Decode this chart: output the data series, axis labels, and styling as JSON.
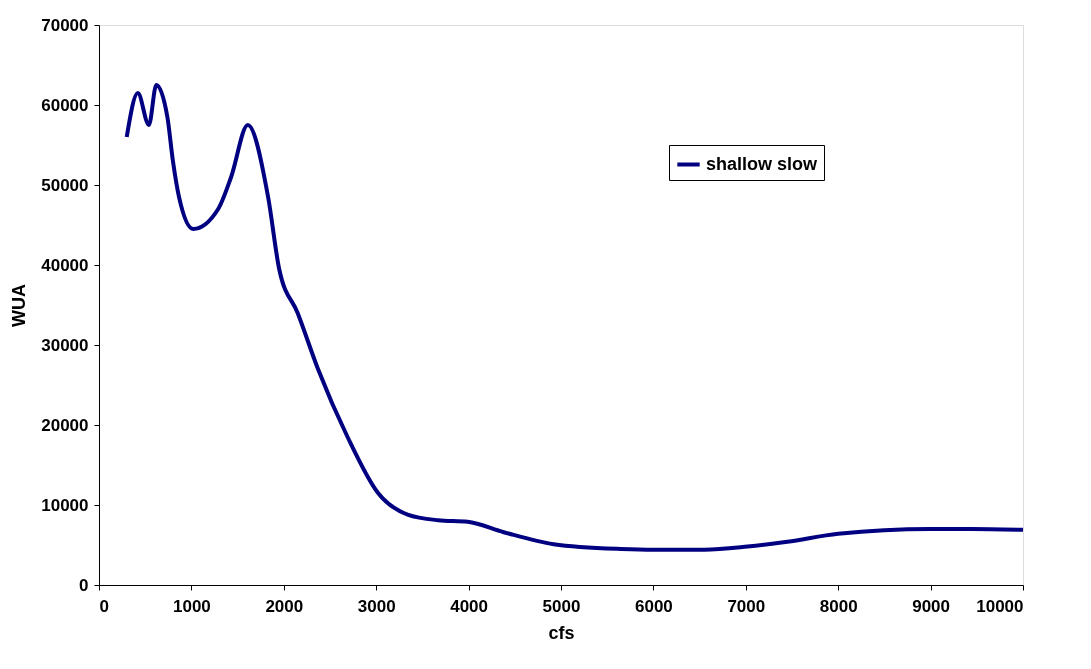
{
  "chart_data": {
    "type": "line",
    "xlabel": "cfs",
    "ylabel": "WUA",
    "xlim": [
      0,
      10000
    ],
    "ylim": [
      0,
      70000
    ],
    "xticks": [
      0,
      1000,
      2000,
      3000,
      4000,
      5000,
      6000,
      7000,
      8000,
      9000,
      10000
    ],
    "yticks": [
      0,
      10000,
      20000,
      30000,
      40000,
      50000,
      60000,
      70000
    ],
    "grid": false,
    "legend": "top right",
    "marker": "none",
    "line_style": "solid",
    "series": [
      {
        "name": "shallow slow",
        "color": "#000080",
        "x": [
          300,
          420,
          540,
          620,
          740,
          800,
          866,
          1020,
          1290,
          1430,
          1610,
          1830,
          1950,
          2150,
          2370,
          2690,
          3020,
          3340,
          3670,
          3990,
          4380,
          4920,
          5650,
          6000,
          6550,
          7020,
          7450,
          8000,
          9000,
          9440,
          10000
        ],
        "values": [
          56000,
          61500,
          57500,
          62500,
          58500,
          53000,
          48500,
          44500,
          47000,
          51000,
          57500,
          48500,
          39500,
          34000,
          27000,
          18500,
          11500,
          8800,
          8100,
          7900,
          6600,
          5100,
          4500,
          4400,
          4400,
          4800,
          5400,
          6400,
          7000,
          7000,
          6900
        ]
      }
    ]
  }
}
